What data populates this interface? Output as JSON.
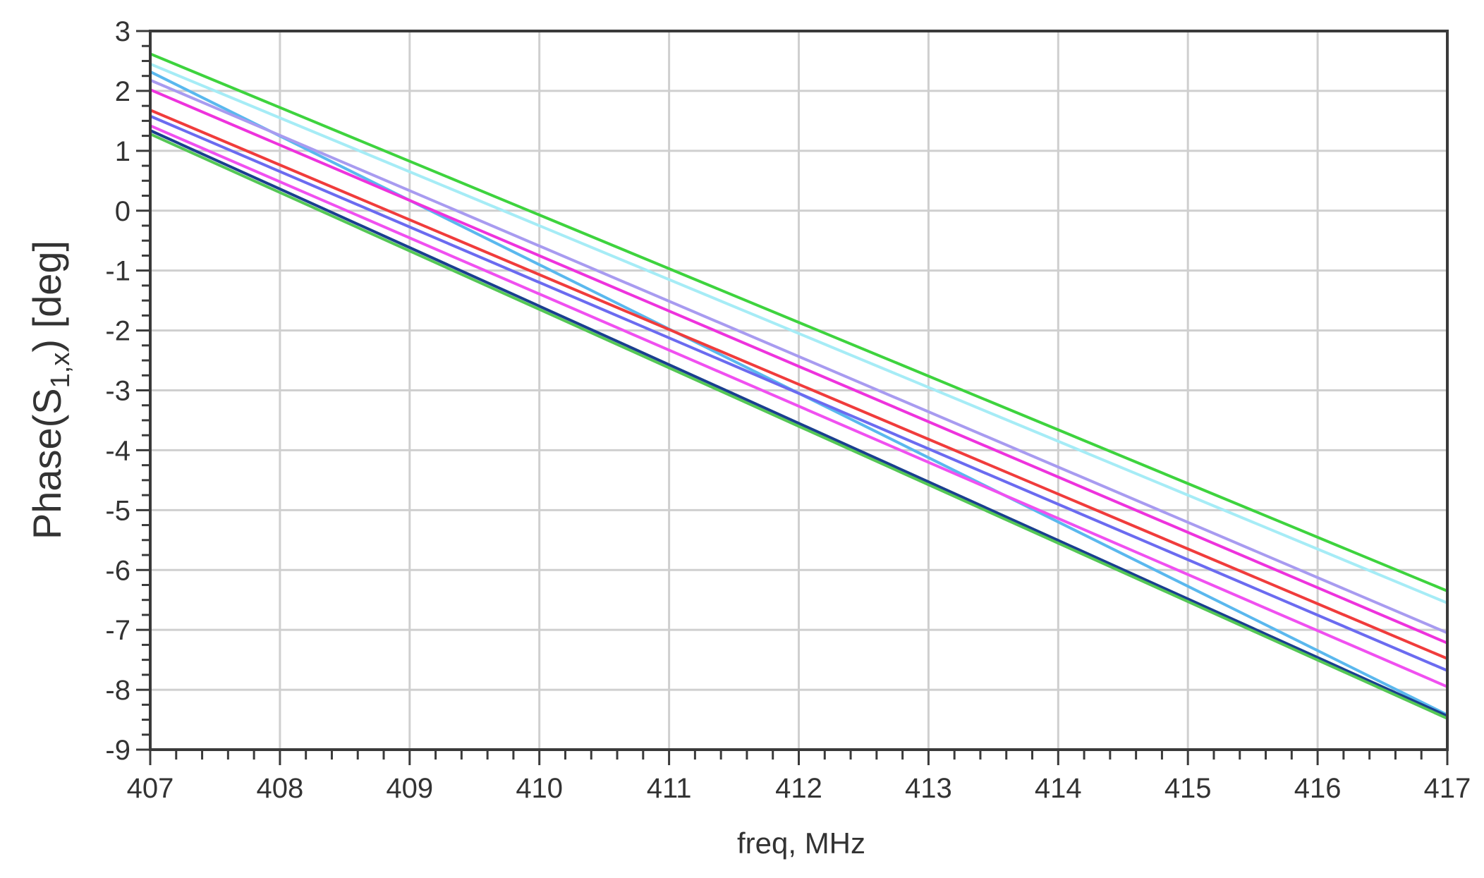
{
  "chart_data": {
    "type": "line",
    "title": "",
    "xlabel": "freq, MHz",
    "ylabel_parts": {
      "prefix": "Phase(S",
      "subscript": "1,x",
      "suffix": ") [deg]"
    },
    "xlim": [
      407,
      417
    ],
    "ylim": [
      -9,
      3
    ],
    "x_ticks": [
      407,
      408,
      409,
      410,
      411,
      412,
      413,
      414,
      415,
      416,
      417
    ],
    "y_ticks": [
      3,
      2,
      1,
      0,
      -1,
      -2,
      -3,
      -4,
      -5,
      -6,
      -7,
      -8,
      -9
    ],
    "x_minor_per_major": 5,
    "y_minor_per_major": 4,
    "grid": true,
    "legend": "none",
    "x": [
      407,
      417
    ],
    "series": [
      {
        "color": "#3ed33e",
        "values": [
          2.62,
          -6.35
        ]
      },
      {
        "color": "#a6ecf6",
        "values": [
          2.45,
          -6.55
        ]
      },
      {
        "color": "#5ab8ee",
        "values": [
          2.32,
          -8.42
        ]
      },
      {
        "color": "#a89bf0",
        "values": [
          2.18,
          -7.05
        ]
      },
      {
        "color": "#ee33dd",
        "values": [
          2.02,
          -7.22
        ]
      },
      {
        "color": "#f03c3c",
        "values": [
          1.68,
          -7.48
        ]
      },
      {
        "color": "#6b6bf0",
        "values": [
          1.58,
          -7.68
        ]
      },
      {
        "color": "#f050f0",
        "values": [
          1.42,
          -7.95
        ]
      },
      {
        "color": "#1a3f8f",
        "values": [
          1.34,
          -8.44
        ]
      },
      {
        "color": "#55c855",
        "values": [
          1.28,
          -8.48
        ]
      }
    ]
  }
}
